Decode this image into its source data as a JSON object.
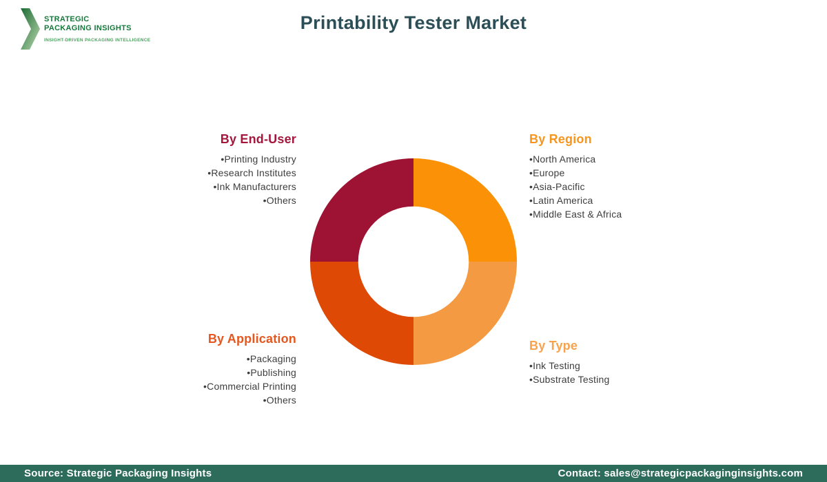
{
  "page": {
    "title": "Printability Tester Market",
    "title_color": "#2b4e57"
  },
  "logo": {
    "line1": "STRATEGIC",
    "line2": "PACKAGING INSIGHTS",
    "tagline": "INSIGHT-DRIVEN PACKAGING INTELLIGENCE",
    "chevron_dark": "#1d6b33",
    "chevron_light": "#b9d8b0"
  },
  "chart_data": {
    "type": "pie",
    "subtype": "donut",
    "title": "Printability Tester Market segmentation",
    "inner_radius_ratio": 0.535,
    "start_angle_deg": 0,
    "segments": [
      {
        "label": "By Region",
        "value": 25,
        "color": "#FB9106"
      },
      {
        "label": "By Type",
        "value": 25,
        "color": "#F49A42"
      },
      {
        "label": "By Application",
        "value": 25,
        "color": "#DE4A05"
      },
      {
        "label": "By End-User",
        "value": 25,
        "color": "#9E1333"
      }
    ]
  },
  "groups": {
    "end_user": {
      "title": "By End-User",
      "color": "#A4173C",
      "items": [
        "Printing Industry",
        "Research Institutes",
        "Ink Manufacturers",
        "Others"
      ]
    },
    "region": {
      "title": "By Region",
      "color": "#F8951D",
      "items": [
        "North America",
        "Europe",
        "Asia-Pacific",
        "Latin America",
        "Middle East & Africa"
      ]
    },
    "application": {
      "title": "By Application",
      "color": "#E5571E",
      "items": [
        "Packaging",
        "Publishing",
        "Commercial Printing",
        "Others"
      ]
    },
    "type": {
      "title": "By Type",
      "color": "#F8A24B",
      "items": [
        "Ink Testing",
        "Substrate Testing"
      ]
    }
  },
  "footer": {
    "source": "Source: Strategic Packaging Insights",
    "contact": "Contact: sales@strategicpackaginginsights.com",
    "background": "#2D6B5B"
  }
}
